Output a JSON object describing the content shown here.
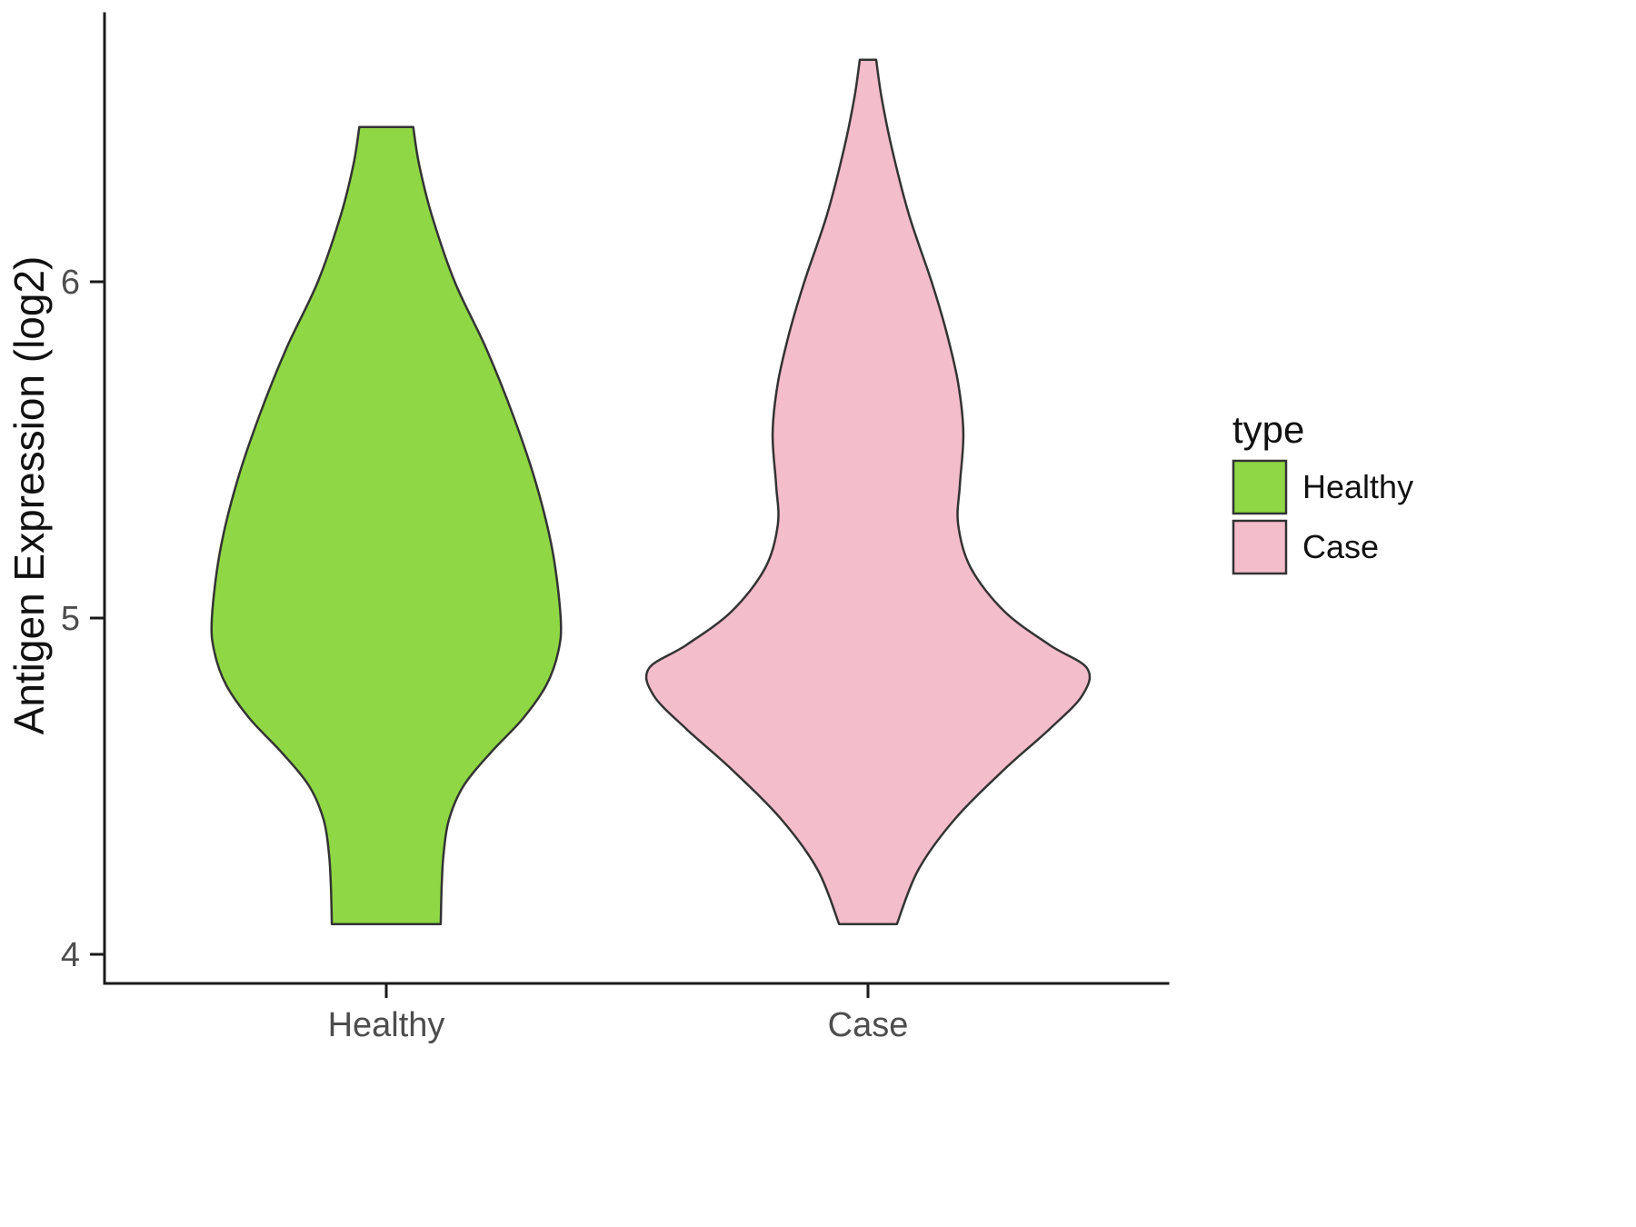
{
  "chart_data": {
    "type": "violin",
    "title": "",
    "xlabel": "",
    "ylabel": "Antigen Expression (log2)",
    "ylim": [
      4,
      6.8
    ],
    "yticks": [
      "4",
      "5",
      "6"
    ],
    "categories": [
      "Healthy",
      "Case"
    ],
    "grid": "off",
    "axis_color": "#1a1a1a",
    "outline_color": "#333333",
    "legend": {
      "title": "type",
      "position": "right",
      "entries": [
        {
          "label": "Healthy",
          "color": "#8FD744"
        },
        {
          "label": "Case",
          "color": "#F4BDCB"
        }
      ]
    },
    "series": [
      {
        "name": "Healthy",
        "color": "#8FD744",
        "y_min": 4.09,
        "y_max": 6.46,
        "peak_density_at": 5.0,
        "profile": [
          [
            6.46,
            0.056
          ],
          [
            6.35,
            0.068
          ],
          [
            6.2,
            0.094
          ],
          [
            6.0,
            0.142
          ],
          [
            5.8,
            0.208
          ],
          [
            5.6,
            0.264
          ],
          [
            5.4,
            0.311
          ],
          [
            5.2,
            0.345
          ],
          [
            5.0,
            0.362
          ],
          [
            4.9,
            0.357
          ],
          [
            4.8,
            0.332
          ],
          [
            4.7,
            0.283
          ],
          [
            4.6,
            0.217
          ],
          [
            4.5,
            0.16
          ],
          [
            4.4,
            0.13
          ],
          [
            4.3,
            0.119
          ],
          [
            4.2,
            0.115
          ],
          [
            4.09,
            0.113
          ]
        ]
      },
      {
        "name": "Case",
        "color": "#F4BDCB",
        "y_min": 4.09,
        "y_max": 6.66,
        "peak_density_at": 4.85,
        "profile": [
          [
            6.66,
            0.017
          ],
          [
            6.55,
            0.028
          ],
          [
            6.4,
            0.049
          ],
          [
            6.2,
            0.085
          ],
          [
            6.0,
            0.132
          ],
          [
            5.85,
            0.163
          ],
          [
            5.7,
            0.187
          ],
          [
            5.55,
            0.198
          ],
          [
            5.4,
            0.191
          ],
          [
            5.28,
            0.187
          ],
          [
            5.15,
            0.213
          ],
          [
            5.02,
            0.283
          ],
          [
            4.92,
            0.377
          ],
          [
            4.85,
            0.455
          ],
          [
            4.77,
            0.445
          ],
          [
            4.67,
            0.377
          ],
          [
            4.55,
            0.283
          ],
          [
            4.4,
            0.179
          ],
          [
            4.25,
            0.104
          ],
          [
            4.09,
            0.06
          ]
        ]
      }
    ]
  }
}
